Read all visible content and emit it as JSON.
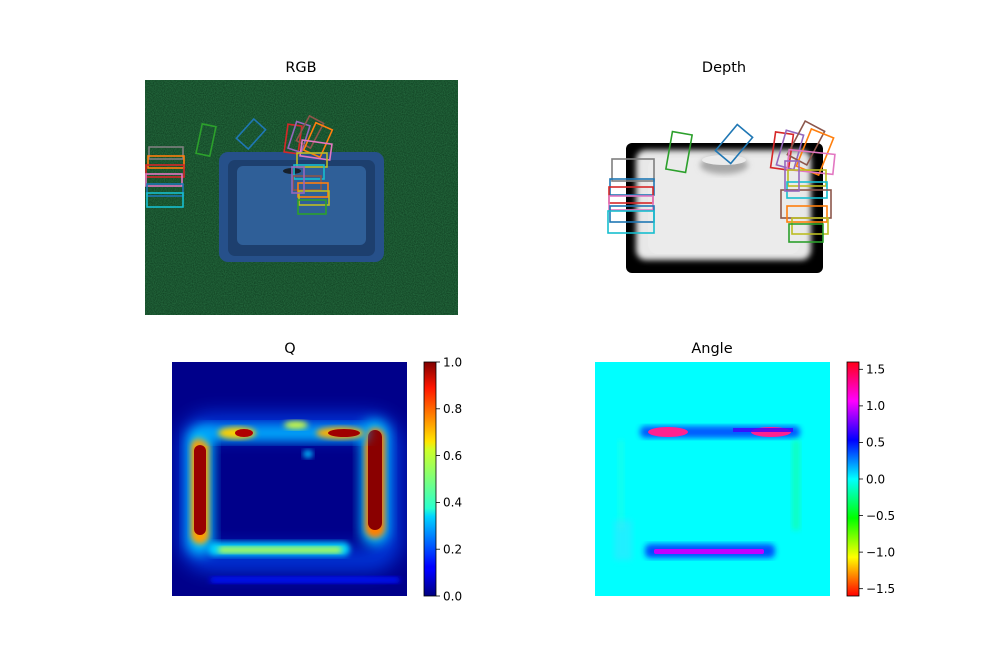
{
  "chart_data": [
    {
      "type": "image",
      "title": "RGB",
      "grasp_colors": [
        "#1f77b4",
        "#ff7f0e",
        "#2ca02c",
        "#d62728",
        "#9467bd",
        "#8c564b",
        "#e377c2",
        "#7f7f7f",
        "#bcbd22",
        "#17becf"
      ]
    },
    {
      "type": "image",
      "title": "Depth",
      "grasp_colors": [
        "#1f77b4",
        "#ff7f0e",
        "#2ca02c",
        "#d62728",
        "#9467bd",
        "#8c564b",
        "#e377c2",
        "#7f7f7f",
        "#bcbd22",
        "#17becf"
      ]
    },
    {
      "type": "heatmap",
      "title": "Q",
      "colormap": "jet",
      "clim": [
        0.0,
        1.0
      ],
      "colorbar_ticks": [
        "0.0",
        "0.2",
        "0.4",
        "0.6",
        "0.8",
        "1.0"
      ]
    },
    {
      "type": "heatmap",
      "title": "Angle",
      "colormap": "hsv",
      "clim": [
        -1.6,
        1.6
      ],
      "colorbar_ticks": [
        "−1.5",
        "−1.0",
        "−0.5",
        "0.0",
        "0.5",
        "1.0",
        "1.5"
      ],
      "colorbar_values": [
        -1.5,
        -1.0,
        -0.5,
        0.0,
        0.5,
        1.0,
        1.5
      ]
    }
  ]
}
